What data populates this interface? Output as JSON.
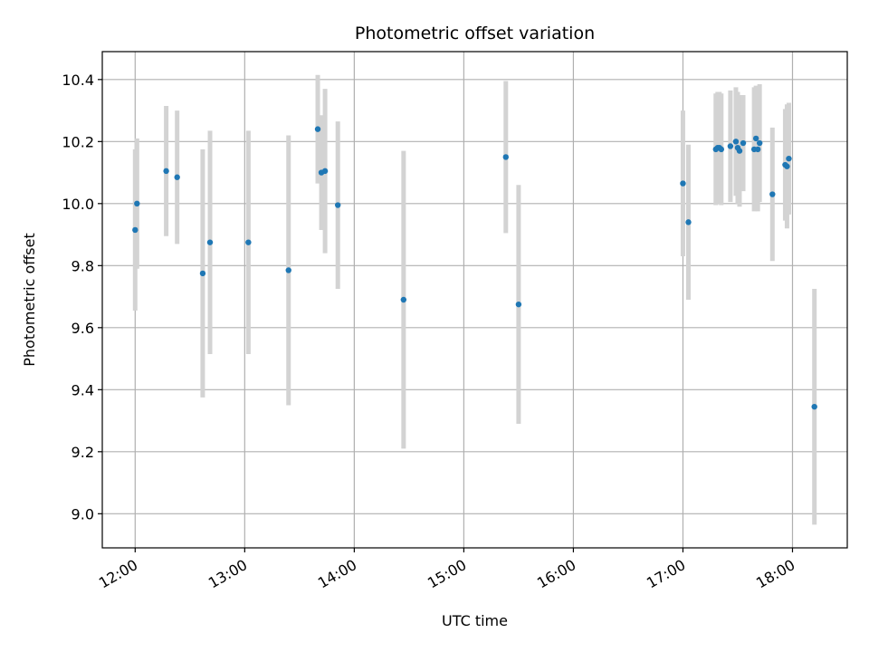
{
  "chart_data": {
    "type": "scatter",
    "title": "Photometric offset variation",
    "xlabel": "UTC time",
    "ylabel": "Photometric offset",
    "x_is_time": true,
    "xlim": [
      "11:42",
      "18:30"
    ],
    "ylim": [
      8.89,
      10.49
    ],
    "x_ticks": [
      "12:00",
      "13:00",
      "14:00",
      "15:00",
      "16:00",
      "17:00",
      "18:00"
    ],
    "y_ticks": [
      9.0,
      9.2,
      9.4,
      9.6,
      9.8,
      10.0,
      10.2,
      10.4
    ],
    "y_tick_labels": [
      "9.0",
      "9.2",
      "9.4",
      "9.6",
      "9.8",
      "10.0",
      "10.2",
      "10.4"
    ],
    "grid": true,
    "marker_color": "#1f77b4",
    "errorbar_color": "#d3d3d3",
    "points": [
      {
        "x": "12:00",
        "y": 9.915,
        "err": 0.26
      },
      {
        "x": "12:01",
        "y": 10.0,
        "err": 0.21
      },
      {
        "x": "12:17",
        "y": 10.105,
        "err": 0.21
      },
      {
        "x": "12:23",
        "y": 10.085,
        "err": 0.215
      },
      {
        "x": "12:37",
        "y": 9.775,
        "err": 0.4
      },
      {
        "x": "12:41",
        "y": 9.875,
        "err": 0.36
      },
      {
        "x": "13:02",
        "y": 9.875,
        "err": 0.36
      },
      {
        "x": "13:24",
        "y": 9.785,
        "err": 0.435
      },
      {
        "x": "13:40",
        "y": 10.24,
        "err": 0.175
      },
      {
        "x": "13:42",
        "y": 10.1,
        "err": 0.185
      },
      {
        "x": "13:44",
        "y": 10.105,
        "err": 0.265
      },
      {
        "x": "13:51",
        "y": 9.995,
        "err": 0.27
      },
      {
        "x": "14:27",
        "y": 9.69,
        "err": 0.48
      },
      {
        "x": "15:23",
        "y": 10.15,
        "err": 0.245
      },
      {
        "x": "15:30",
        "y": 9.675,
        "err": 0.385
      },
      {
        "x": "17:00",
        "y": 10.065,
        "err": 0.235
      },
      {
        "x": "17:03",
        "y": 9.94,
        "err": 0.25
      },
      {
        "x": "17:18",
        "y": 10.175,
        "err": 0.18
      },
      {
        "x": "17:19",
        "y": 10.18,
        "err": 0.18
      },
      {
        "x": "17:20",
        "y": 10.18,
        "err": 0.18
      },
      {
        "x": "17:21",
        "y": 10.175,
        "err": 0.18
      },
      {
        "x": "17:26",
        "y": 10.185,
        "err": 0.18
      },
      {
        "x": "17:29",
        "y": 10.2,
        "err": 0.175
      },
      {
        "x": "17:30",
        "y": 10.18,
        "err": 0.18
      },
      {
        "x": "17:31",
        "y": 10.17,
        "err": 0.18
      },
      {
        "x": "17:33",
        "y": 10.195,
        "err": 0.155
      },
      {
        "x": "17:39",
        "y": 10.175,
        "err": 0.2
      },
      {
        "x": "17:40",
        "y": 10.21,
        "err": 0.17
      },
      {
        "x": "17:41",
        "y": 10.175,
        "err": 0.2
      },
      {
        "x": "17:42",
        "y": 10.195,
        "err": 0.19
      },
      {
        "x": "17:49",
        "y": 10.03,
        "err": 0.215
      },
      {
        "x": "17:56",
        "y": 10.125,
        "err": 0.18
      },
      {
        "x": "17:57",
        "y": 10.12,
        "err": 0.2
      },
      {
        "x": "17:58",
        "y": 10.145,
        "err": 0.18
      },
      {
        "x": "18:12",
        "y": 9.345,
        "err": 0.38
      }
    ]
  }
}
